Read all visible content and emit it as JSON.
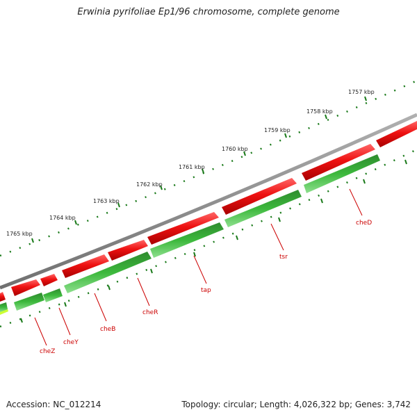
{
  "title": "Erwinia pyrifoliae Ep1/96 chromosome, complete genome",
  "footer": {
    "accession": "Accession: NC_012214",
    "summary": "Topology: circular; Length: 4,026,322 bp; Genes: 3,742"
  },
  "kbp_labels": [
    "1765 kbp",
    "1764 kbp",
    "1763 kbp",
    "1762 kbp",
    "1761 kbp",
    "1760 kbp",
    "1759 kbp",
    "1758 kbp",
    "1757 kbp"
  ],
  "gene_labels": [
    "cheZ",
    "cheY",
    "cheB",
    "cheR",
    "tap",
    "tsr",
    "cheD"
  ],
  "colors": {
    "backbone": "#8a8a8a",
    "forward_gene": "#ee1111",
    "reverse_gene": "#33aa33",
    "tick": "#1a7a1a",
    "label": "#cc0000"
  }
}
